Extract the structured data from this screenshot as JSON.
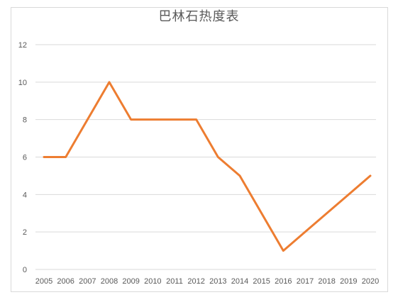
{
  "chart_data": {
    "type": "line",
    "title": "巴林石热度表",
    "xlabel": "",
    "ylabel": "",
    "x": [
      "2005",
      "2006",
      "2007",
      "2008",
      "2009",
      "2010",
      "2011",
      "2012",
      "2013",
      "2014",
      "2015",
      "2016",
      "2017",
      "2018",
      "2019",
      "2020"
    ],
    "series": [
      {
        "values": [
          6,
          6,
          8,
          10,
          8,
          8,
          8,
          8,
          6,
          5,
          3,
          1,
          2,
          3,
          4,
          5
        ],
        "color": "#ed7d31"
      }
    ],
    "yticks": [
      "0",
      "2",
      "4",
      "6",
      "8",
      "10",
      "12"
    ],
    "ylim": [
      0,
      12
    ],
    "grid": true,
    "legend": "none"
  }
}
